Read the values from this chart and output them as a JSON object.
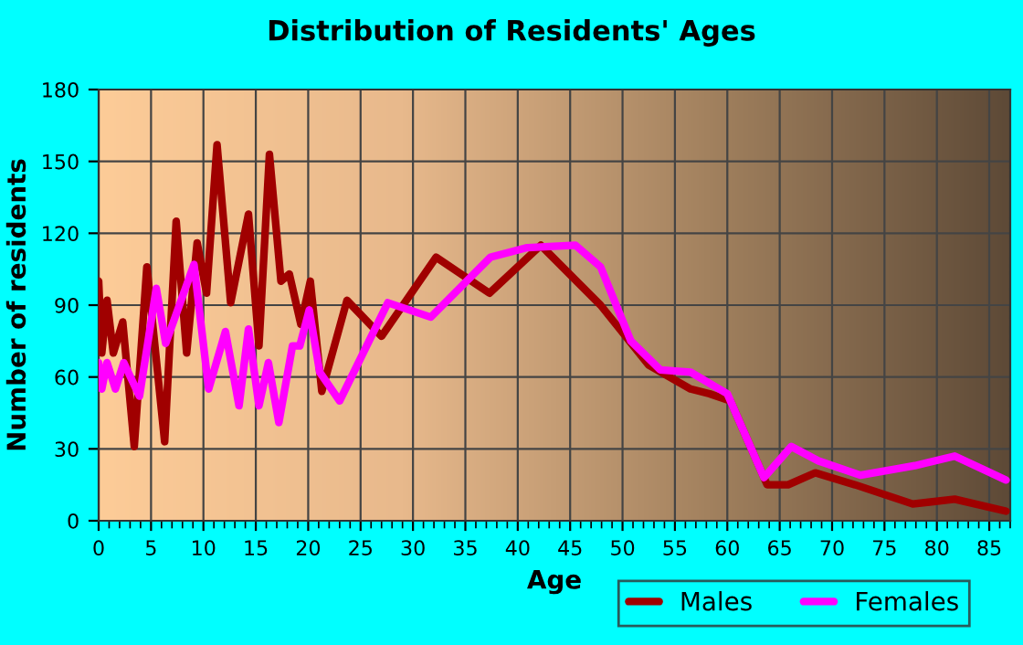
{
  "chart_data": {
    "type": "line",
    "title": "Distribution of Residents' Ages",
    "xlabel": "Age",
    "ylabel": "Number of residents",
    "xlim": [
      0,
      87
    ],
    "xticks": [
      0,
      5,
      10,
      15,
      20,
      25,
      30,
      35,
      40,
      45,
      50,
      55,
      60,
      65,
      70,
      75,
      80,
      85
    ],
    "ylim": [
      0,
      180
    ],
    "yticks": [
      0,
      30,
      60,
      90,
      120,
      150,
      180
    ],
    "grid": true,
    "legend": "bottom right",
    "marker": "none",
    "line_style": "solid",
    "series": [
      {
        "name": "Males",
        "color": "#a00000",
        "x": [
          0,
          0.3,
          0.8,
          1.4,
          2.3,
          3.4,
          4.6,
          6.3,
          7.4,
          8.4,
          9.4,
          10.3,
          11.3,
          12.6,
          14.3,
          15.3,
          16.3,
          17.4,
          18.2,
          19.3,
          20.2,
          21.3,
          23.7,
          27,
          32.2,
          37.3,
          42.2,
          47.9,
          52.5,
          56.5,
          58.3,
          60.3,
          63.8,
          65.8,
          68.4,
          72.2,
          77.7,
          81.7,
          86.6
        ],
        "values": [
          100,
          70,
          92,
          70,
          83,
          31,
          106,
          33,
          125,
          70,
          116,
          95,
          157,
          91,
          128,
          73,
          153,
          100,
          103,
          82,
          100,
          54,
          92,
          77,
          110,
          95,
          115,
          90,
          65,
          55,
          53,
          50,
          15,
          15,
          20,
          15,
          7,
          9,
          4
        ]
      },
      {
        "name": "Females",
        "color": "#ff00ff",
        "x": [
          0,
          0.3,
          0.8,
          1.6,
          2.4,
          3.9,
          5.5,
          6.4,
          9.1,
          10.5,
          12.1,
          13.4,
          14.3,
          15.3,
          16.2,
          17.2,
          18.5,
          19.2,
          20.1,
          21.1,
          23,
          27.6,
          31.7,
          37.4,
          40.9,
          45.5,
          47.9,
          50.8,
          53.6,
          56.5,
          60,
          63.5,
          66.1,
          68.7,
          72.7,
          77.9,
          81.7,
          86.6
        ],
        "values": [
          66,
          55,
          66,
          55,
          66,
          52,
          97,
          74,
          107,
          55,
          79,
          48,
          80,
          48,
          66,
          41,
          73,
          73,
          88,
          62,
          50,
          91,
          85,
          110,
          114,
          115,
          106,
          75,
          63,
          62,
          53,
          18,
          31,
          25,
          19,
          23,
          27,
          17
        ]
      }
    ]
  }
}
